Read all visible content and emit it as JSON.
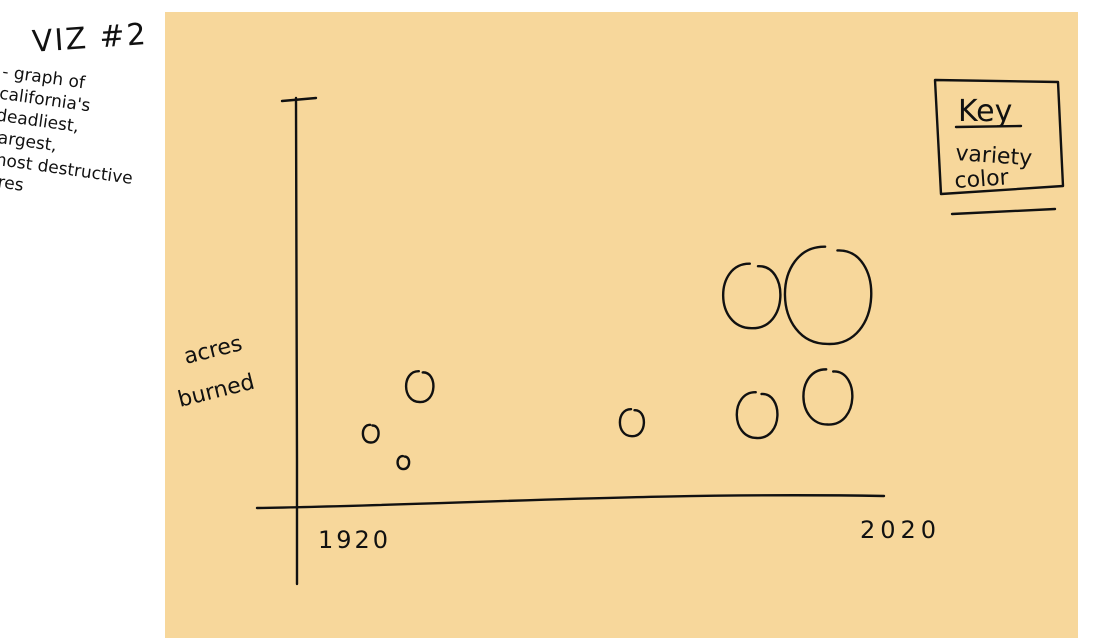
{
  "notes": {
    "title": "VIZ #2",
    "lines": [
      "- graph of",
      "california's",
      "deadliest,",
      "largest,",
      "most destructive",
      "fires"
    ]
  },
  "key": {
    "title": "Key",
    "lines": [
      "variety",
      "color"
    ]
  },
  "chart_data": {
    "type": "scatter",
    "ylabel": "acres burned",
    "x_ticks": [
      "1920",
      "2020"
    ],
    "xlim": [
      1920,
      2020
    ],
    "grid": false,
    "legend": "top-right",
    "points": [
      {
        "x": 1926,
        "y": 1.0,
        "size": 1.0
      },
      {
        "x": 1932,
        "y": 0.2,
        "size": 0.5
      },
      {
        "x": 1935,
        "y": 2.3,
        "size": 2.4
      },
      {
        "x": 1974,
        "y": 1.3,
        "size": 2.0
      },
      {
        "x": 1997,
        "y": 1.5,
        "size": 4.0
      },
      {
        "x": 1996,
        "y": 4.8,
        "size": 6.0
      },
      {
        "x": 2010,
        "y": 2.0,
        "size": 5.0
      },
      {
        "x": 2010,
        "y": 4.8,
        "size": 9.5
      }
    ]
  }
}
